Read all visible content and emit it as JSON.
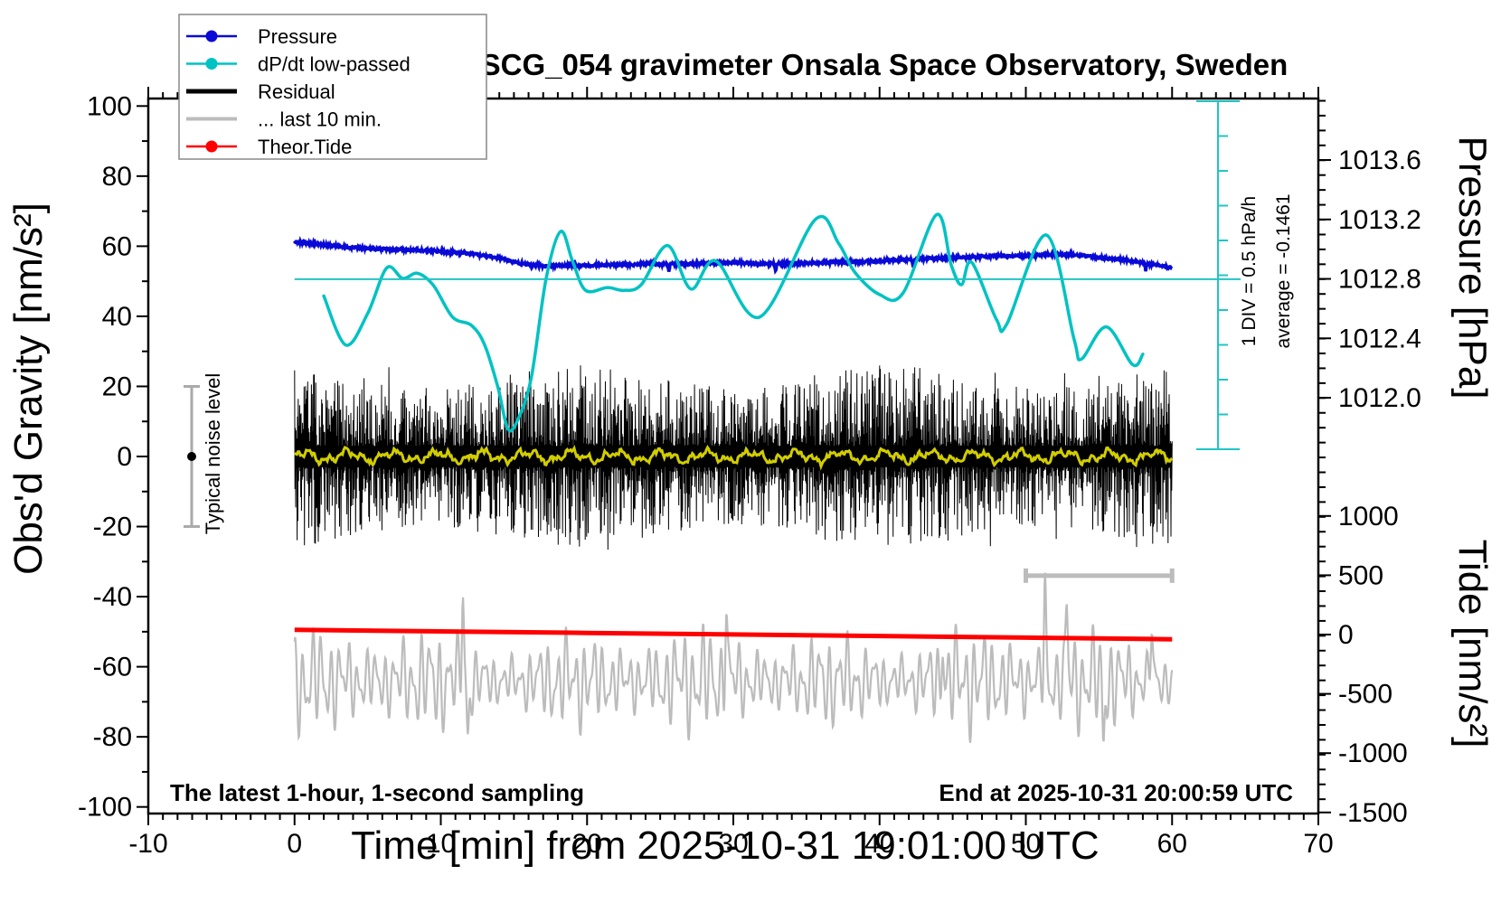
{
  "title": "SCG_054 gravimeter Onsala Space Observatory, Sweden",
  "notes": {
    "sampling": "The latest 1-hour, 1-second sampling",
    "end_time": "End at 2025-10-31 20:00:59 UTC",
    "noise_level": "Typical noise level",
    "div_scale": "1 DIV = 0.5 hPa/h",
    "average": "average = -0.1461"
  },
  "legend": {
    "items": [
      {
        "label": "Pressure",
        "color": "#0a0ad7",
        "style": "line-dot"
      },
      {
        "label": "dP/dt low-passed",
        "color": "#00c2c2",
        "style": "line-dot"
      },
      {
        "label": "Residual",
        "color": "#000000",
        "style": "thick-line"
      },
      {
        "label": "... last 10 min.",
        "color": "#bcbcbc",
        "style": "thick-line"
      },
      {
        "label": "Theor.Tide",
        "color": "#ff0000",
        "style": "line-dot"
      }
    ]
  },
  "axes": {
    "x": {
      "label": "Time [min] from 2025-10-31 19:01:00 UTC",
      "min": -10,
      "max": 70,
      "major_ticks": [
        -10,
        0,
        10,
        20,
        30,
        40,
        50,
        60,
        70
      ],
      "minor_step": 1
    },
    "gravity": {
      "label": "Obs'd Gravity [nm/s²]",
      "min": -100,
      "max": 100,
      "major_ticks": [
        100,
        80,
        60,
        40,
        20,
        0,
        -20,
        -40,
        -60,
        -80,
        -100
      ],
      "minor_step": 10
    },
    "pressure": {
      "label": "Pressure [hPa]",
      "major_ticks": [
        1013.6,
        1013.2,
        1012.8,
        1012.4,
        1012.0
      ],
      "minor_step": 0.1
    },
    "tide": {
      "label": "Tide [nm/s²]",
      "major_ticks": [
        1000,
        500,
        0,
        -500,
        -1000,
        -1500
      ],
      "minor_step": 125
    }
  },
  "chart_data": {
    "type": "line",
    "x_unit": "minutes",
    "series": [
      {
        "name": "Pressure",
        "axis": "pressure",
        "unit": "hPa",
        "color": "#0a0ad7",
        "points": [
          [
            0,
            1013.05
          ],
          [
            2,
            1013.03
          ],
          [
            4,
            1013.01
          ],
          [
            6,
            1013.0
          ],
          [
            8,
            1012.995
          ],
          [
            10,
            1012.985
          ],
          [
            12,
            1012.97
          ],
          [
            13,
            1012.955
          ],
          [
            14,
            1012.94
          ],
          [
            15,
            1012.915
          ],
          [
            16,
            1012.895
          ],
          [
            17,
            1012.885
          ],
          [
            18,
            1012.89
          ],
          [
            20,
            1012.89
          ],
          [
            22,
            1012.895
          ],
          [
            24,
            1012.9
          ],
          [
            26,
            1012.9
          ],
          [
            28,
            1012.905
          ],
          [
            30,
            1012.91
          ],
          [
            32,
            1012.9
          ],
          [
            34,
            1012.905
          ],
          [
            36,
            1012.91
          ],
          [
            38,
            1012.915
          ],
          [
            40,
            1012.92
          ],
          [
            42,
            1012.93
          ],
          [
            44,
            1012.94
          ],
          [
            46,
            1012.945
          ],
          [
            48,
            1012.955
          ],
          [
            50,
            1012.955
          ],
          [
            52,
            1012.965
          ],
          [
            53,
            1012.965
          ],
          [
            54,
            1012.955
          ],
          [
            55,
            1012.945
          ],
          [
            56,
            1012.935
          ],
          [
            57,
            1012.925
          ],
          [
            58,
            1012.91
          ],
          [
            59,
            1012.89
          ],
          [
            60,
            1012.875
          ]
        ],
        "down_spikes_t": [
          25.6,
          32.9,
          42.3,
          58.2
        ]
      },
      {
        "name": "dP/dt low-passed",
        "axis": "dpdt",
        "unit": "hPa/h",
        "color": "#00c2c2",
        "average": -0.1461,
        "div_value": 0.5,
        "points": [
          [
            2.0,
            -0.12
          ],
          [
            3.5,
            -0.47
          ],
          [
            5.0,
            -0.245
          ],
          [
            6.3,
            0.08
          ],
          [
            7.4,
            0.005
          ],
          [
            8.4,
            0.042
          ],
          [
            9.5,
            -0.045
          ],
          [
            10.8,
            -0.27
          ],
          [
            12.1,
            -0.33
          ],
          [
            13.0,
            -0.47
          ],
          [
            13.9,
            -0.77
          ],
          [
            14.6,
            -1.07
          ],
          [
            15.3,
            -0.995
          ],
          [
            16.2,
            -0.695
          ],
          [
            17.2,
            0.005
          ],
          [
            18.2,
            0.34
          ],
          [
            19.0,
            0.13
          ],
          [
            19.9,
            -0.08
          ],
          [
            21.4,
            -0.06
          ],
          [
            22.5,
            -0.08
          ],
          [
            23.7,
            -0.04
          ],
          [
            25.5,
            0.24
          ],
          [
            27.1,
            -0.07
          ],
          [
            28.8,
            0.13
          ],
          [
            31.8,
            -0.27
          ],
          [
            35.6,
            0.425
          ],
          [
            37.2,
            0.255
          ],
          [
            38.3,
            0.05
          ],
          [
            40.0,
            -0.11
          ],
          [
            41.6,
            -0.1
          ],
          [
            43.9,
            0.46
          ],
          [
            44.9,
            0.1
          ],
          [
            45.6,
            -0.04
          ],
          [
            46.3,
            0.12
          ],
          [
            48.0,
            -0.29
          ],
          [
            48.7,
            -0.32
          ],
          [
            51.4,
            0.315
          ],
          [
            53.3,
            -0.43
          ],
          [
            53.8,
            -0.57
          ],
          [
            55.5,
            -0.34
          ],
          [
            57.3,
            -0.61
          ],
          [
            58.0,
            -0.535
          ]
        ]
      },
      {
        "name": "Residual",
        "axis": "gravity",
        "unit": "nm/s²",
        "color": "#000000",
        "center": 0,
        "typical_span": [
          -25,
          25
        ],
        "max_spike": 27.5,
        "synthetic": true,
        "n_points": 2400
      },
      {
        "name": "Residual low-passed",
        "axis": "gravity",
        "unit": "nm/s²",
        "color": "#d2cd00",
        "center": 0,
        "amplitude": 2.2,
        "synthetic": true
      },
      {
        "name": "... last 10 min.",
        "axis": "gravity",
        "unit": "nm/s²",
        "color": "#bcbcbc",
        "center": -64,
        "typical_amplitude": 12,
        "synthetic": true,
        "spikes": [
          [
            11.5,
            27
          ],
          [
            11.85,
            -16
          ],
          [
            29.5,
            24
          ],
          [
            44.3,
            14
          ],
          [
            51.3,
            26
          ],
          [
            52.8,
            20
          ],
          [
            55.3,
            -16
          ],
          [
            58.6,
            16
          ]
        ],
        "scale_bar": {
          "t_start": 50,
          "t_end": 60,
          "gravity_y": -34
        }
      },
      {
        "name": "Theor.Tide",
        "axis": "tide",
        "unit": "nm/s²",
        "color": "#ff0000",
        "points": [
          [
            0,
            40
          ],
          [
            10,
            27
          ],
          [
            20,
            14
          ],
          [
            30,
            1
          ],
          [
            40,
            -12
          ],
          [
            50,
            -26
          ],
          [
            60,
            -40
          ]
        ]
      }
    ],
    "reference_lines": {
      "dpdt_zero_line": {
        "axis": "gravity",
        "value": 50.6,
        "x_from": 0,
        "x_to": 64.6,
        "color": "#22c4c4"
      },
      "dpdt_ruler": {
        "x_min": 63.1,
        "gravity_top": 102,
        "gravity_bottom": 2,
        "color": "#22c4c4"
      }
    }
  }
}
